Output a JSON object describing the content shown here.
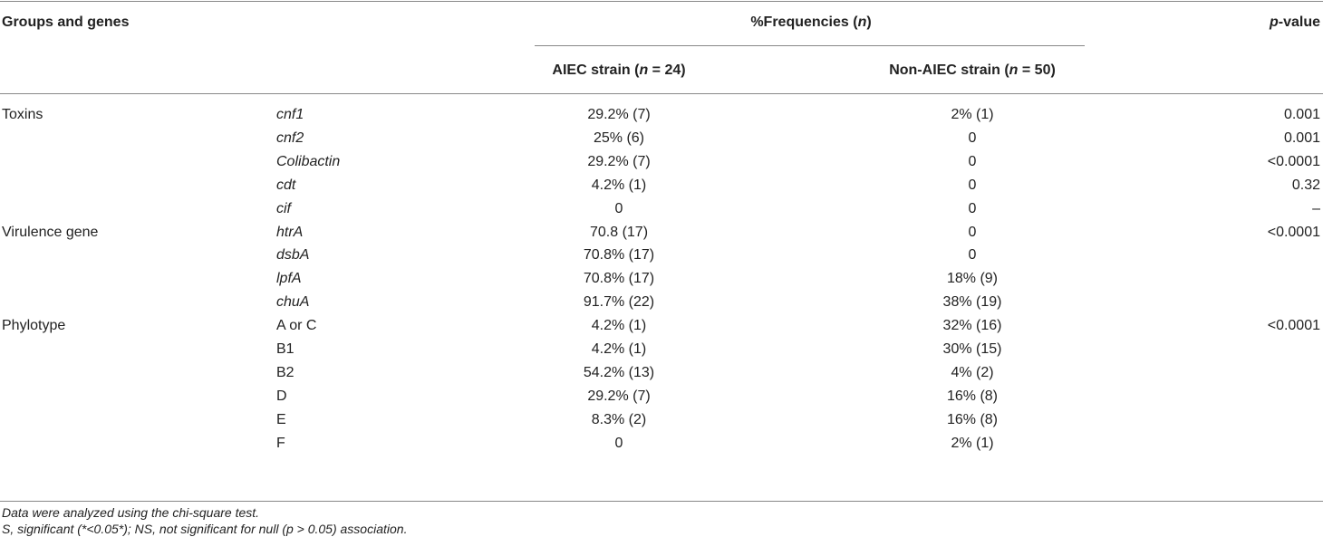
{
  "table": {
    "header": {
      "group": "Groups and genes",
      "frequencies": [
        "%Frequencies (",
        "n",
        ")"
      ],
      "p_value": [
        "p",
        "-value"
      ],
      "aiec": [
        "AIEC strain (",
        "n",
        " = 24)"
      ],
      "non_aiec": [
        "Non-AIEC strain (",
        "n",
        " = 50)"
      ]
    },
    "groups": [
      {
        "name": "Toxins",
        "rows": [
          {
            "gene": "cnf1",
            "aiec": "29.2% (7)",
            "non_aiec": "2% (1)",
            "p": "0.001"
          },
          {
            "gene": "cnf2",
            "aiec": "25% (6)",
            "non_aiec": "0",
            "p": "0.001"
          },
          {
            "gene": "Colibactin",
            "aiec": "29.2% (7)",
            "non_aiec": "0",
            "p": "<0.0001"
          },
          {
            "gene": "cdt",
            "aiec": "4.2% (1)",
            "non_aiec": "0",
            "p": "0.32"
          },
          {
            "gene": "cif",
            "aiec": "0",
            "non_aiec": "0",
            "p": "–"
          }
        ]
      },
      {
        "name": "Virulence gene",
        "rows": [
          {
            "gene": "htrA",
            "aiec": "70.8 (17)",
            "non_aiec": "0",
            "p": "<0.0001"
          },
          {
            "gene": "dsbA",
            "aiec": "70.8% (17)",
            "non_aiec": "0"
          },
          {
            "gene": "lpfA",
            "aiec": "70.8% (17)",
            "non_aiec": "18% (9)"
          },
          {
            "gene": "chuA",
            "aiec": "91.7% (22)",
            "non_aiec": "38% (19)"
          }
        ]
      },
      {
        "name": "Phylotype",
        "rows": [
          {
            "gene": "A or C",
            "aiec": "4.2% (1)",
            "non_aiec": "32% (16)",
            "p": "<0.0001"
          },
          {
            "gene": "B1",
            "aiec": "4.2% (1)",
            "non_aiec": "30% (15)"
          },
          {
            "gene": "B2",
            "aiec": "54.2% (13)",
            "non_aiec": "4% (2)"
          },
          {
            "gene": "D",
            "aiec": "29.2% (7)",
            "non_aiec": "16% (8)"
          },
          {
            "gene": "E",
            "aiec": "8.3% (2)",
            "non_aiec": "16% (8)"
          },
          {
            "gene": "F",
            "aiec": "0",
            "non_aiec": "2% (1)"
          }
        ]
      }
    ],
    "notes": [
      "Data were analyzed using the chi-square test.",
      "S, significant (*<0.05*); NS, not significant for null (p > 0.05) association."
    ]
  }
}
